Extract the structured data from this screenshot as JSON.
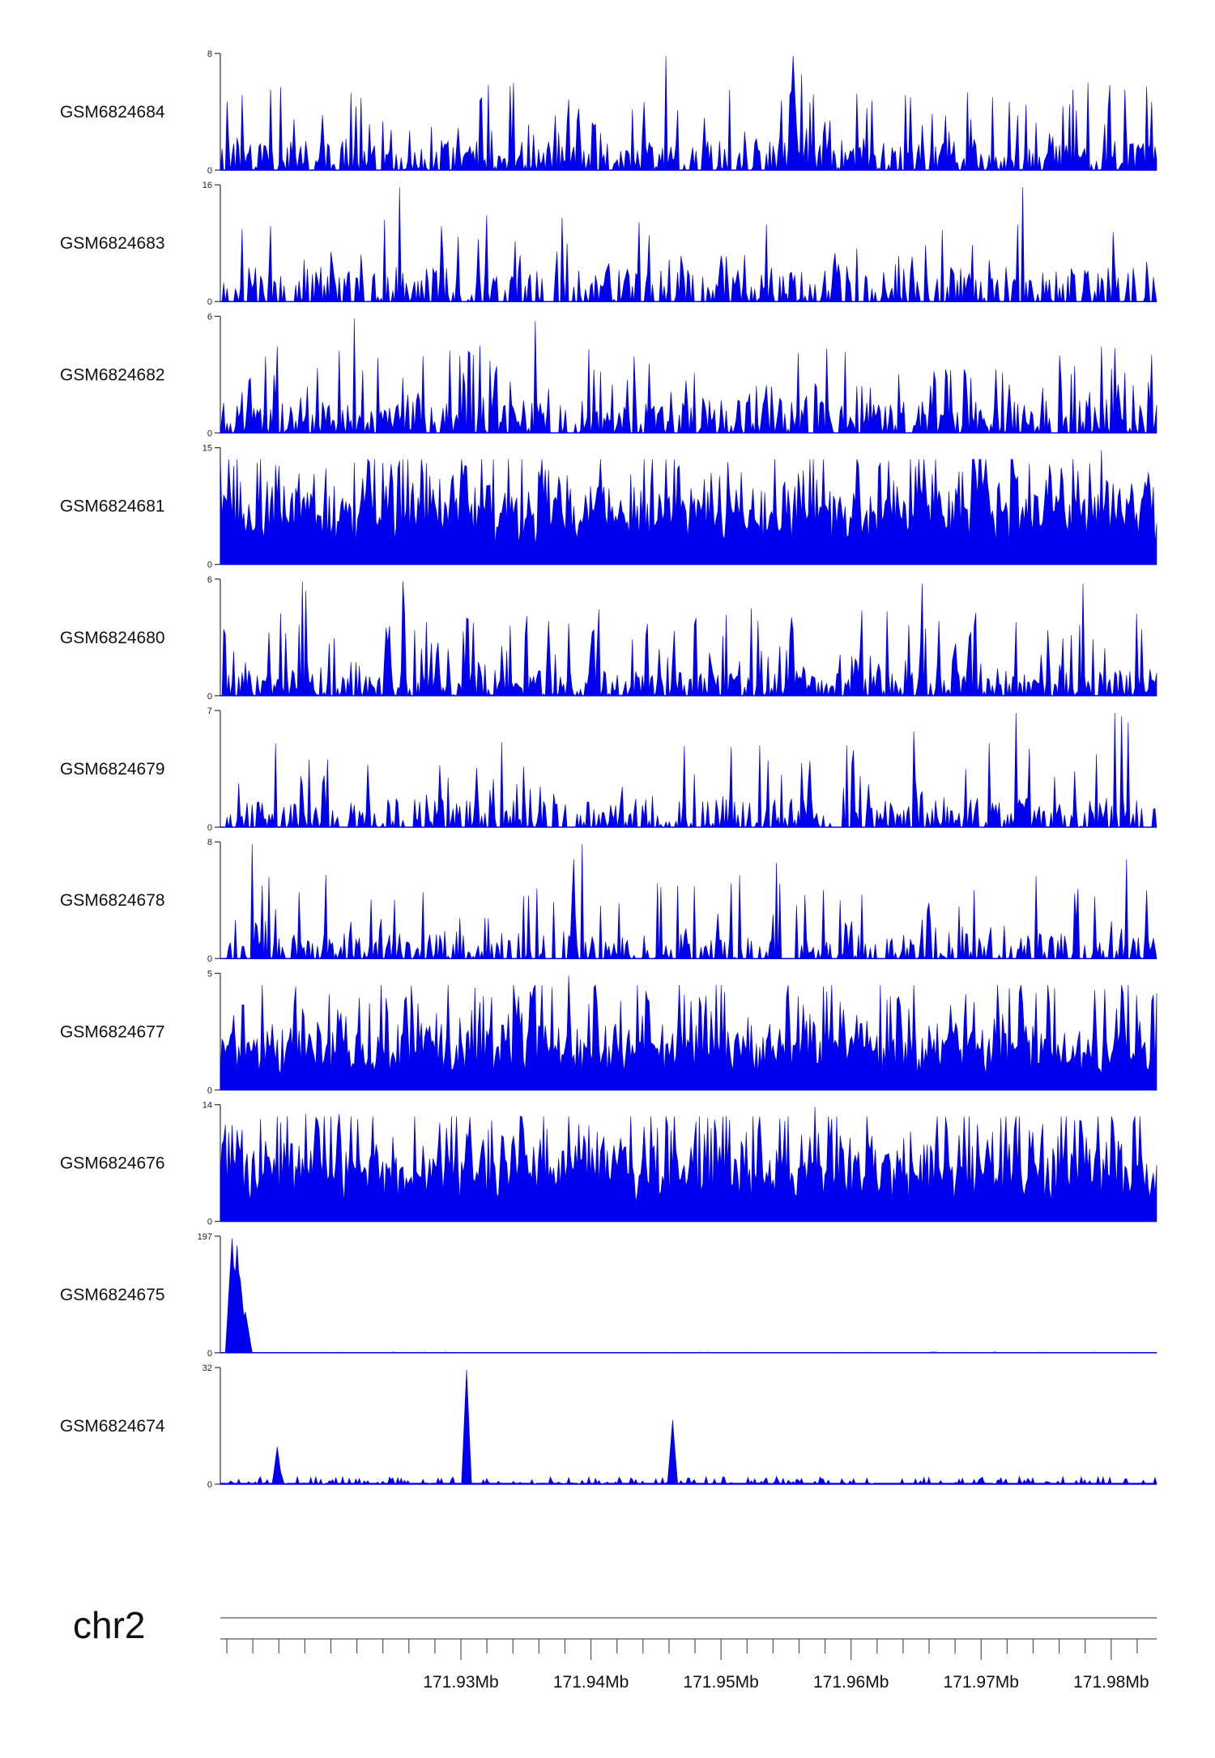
{
  "chart_data": {
    "type": "area",
    "fill_color": "#0000ee",
    "chromosome": "chr2",
    "xlim": [
      171.9115,
      171.9835
    ],
    "xunit": "Mb",
    "xticks_major": [
      171.93,
      171.94,
      171.95,
      171.96,
      171.97,
      171.98
    ],
    "xtick_labels": [
      "171.93Mb",
      "171.94Mb",
      "171.95Mb",
      "171.96Mb",
      "171.97Mb",
      "171.98Mb"
    ],
    "xticks_minor_step": 0.002,
    "grid": false,
    "tracks": [
      {
        "name": "GSM6824684",
        "ymax": 8,
        "ymax_label": "8",
        "ymin_label": "0",
        "style": "spiky",
        "seed": 11,
        "density": 0.9,
        "mean": 0.25,
        "peaks": [
          {
            "x": 171.9223,
            "h": 0.62
          },
          {
            "x": 171.9338,
            "h": 0.72
          },
          {
            "x": 171.9457,
            "h": 0.98
          },
          {
            "x": 171.9555,
            "h": 0.98
          },
          {
            "x": 171.9562,
            "h": 0.82
          }
        ]
      },
      {
        "name": "GSM6824683",
        "ymax": 16,
        "ymax_label": "16",
        "ymin_label": "0",
        "style": "sparse",
        "seed": 23,
        "density": 0.45,
        "mean": 0.3,
        "peaks": [
          {
            "x": 171.9253,
            "h": 0.98
          },
          {
            "x": 171.9732,
            "h": 0.98
          },
          {
            "x": 171.9241,
            "h": 0.7
          },
          {
            "x": 171.9378,
            "h": 0.72
          }
        ]
      },
      {
        "name": "GSM6824682",
        "ymax": 6,
        "ymax_label": "6",
        "ymin_label": "0",
        "style": "spiky",
        "seed": 37,
        "density": 0.85,
        "mean": 0.28,
        "peaks": [
          {
            "x": 171.9218,
            "h": 0.98
          },
          {
            "x": 171.9357,
            "h": 0.96
          },
          {
            "x": 171.9305,
            "h": 0.7
          }
        ]
      },
      {
        "name": "GSM6824681",
        "ymax": 15,
        "ymax_label": "15",
        "ymin_label": "0",
        "style": "dense",
        "seed": 41,
        "density": 1.0,
        "mean": 0.32,
        "peaks": [
          {
            "x": 171.9158,
            "h": 0.85
          },
          {
            "x": 171.9175,
            "h": 0.78
          },
          {
            "x": 171.9248,
            "h": 0.7
          },
          {
            "x": 171.9656,
            "h": 0.85
          },
          {
            "x": 171.9792,
            "h": 0.98
          },
          {
            "x": 171.9727,
            "h": 0.72
          }
        ]
      },
      {
        "name": "GSM6824680",
        "ymax": 6,
        "ymax_label": "6",
        "ymin_label": "0",
        "style": "spiky",
        "seed": 53,
        "density": 0.8,
        "mean": 0.22,
        "peaks": [
          {
            "x": 171.9178,
            "h": 0.98
          },
          {
            "x": 171.9181,
            "h": 0.9
          },
          {
            "x": 171.9255,
            "h": 0.98
          },
          {
            "x": 171.9778,
            "h": 0.96
          },
          {
            "x": 171.9655,
            "h": 0.96
          }
        ]
      },
      {
        "name": "GSM6824679",
        "ymax": 7,
        "ymax_label": "7",
        "ymin_label": "0",
        "style": "sparse",
        "seed": 67,
        "density": 0.6,
        "mean": 0.25,
        "peaks": [
          {
            "x": 171.9727,
            "h": 0.98
          },
          {
            "x": 171.9803,
            "h": 0.98
          },
          {
            "x": 171.9808,
            "h": 0.95
          },
          {
            "x": 171.9813,
            "h": 0.9
          },
          {
            "x": 171.9648,
            "h": 0.82
          }
        ]
      },
      {
        "name": "GSM6824678",
        "ymax": 8,
        "ymax_label": "8",
        "ymin_label": "0",
        "style": "sparse",
        "seed": 71,
        "density": 0.7,
        "mean": 0.22,
        "peaks": [
          {
            "x": 171.914,
            "h": 0.98
          },
          {
            "x": 171.9393,
            "h": 0.98
          },
          {
            "x": 171.9387,
            "h": 0.85
          },
          {
            "x": 171.9812,
            "h": 0.85
          },
          {
            "x": 171.9542,
            "h": 0.82
          }
        ]
      },
      {
        "name": "GSM6824677",
        "ymax": 5,
        "ymax_label": "5",
        "ymin_label": "0",
        "style": "dense",
        "seed": 83,
        "density": 0.95,
        "mean": 0.25,
        "peaks": [
          {
            "x": 171.9383,
            "h": 0.98
          },
          {
            "x": 171.9585,
            "h": 0.9
          },
          {
            "x": 171.9258,
            "h": 0.8
          }
        ]
      },
      {
        "name": "GSM6824676",
        "ymax": 14,
        "ymax_label": "14",
        "ymin_label": "0",
        "style": "dense",
        "seed": 97,
        "density": 1.0,
        "mean": 0.3,
        "peaks": [
          {
            "x": 171.9181,
            "h": 0.92
          },
          {
            "x": 171.9195,
            "h": 0.9
          },
          {
            "x": 171.9207,
            "h": 0.92
          },
          {
            "x": 171.9572,
            "h": 0.98
          },
          {
            "x": 171.9585,
            "h": 0.88
          }
        ]
      },
      {
        "name": "GSM6824675",
        "ymax": 197,
        "ymax_label": "197",
        "ymin_label": "0",
        "style": "single",
        "seed": 5,
        "density": 0.3,
        "mean": 0.003,
        "peaks": [
          {
            "x": 171.9124,
            "h": 0.98
          },
          {
            "x": 171.9128,
            "h": 0.92
          },
          {
            "x": 171.9131,
            "h": 0.62
          },
          {
            "x": 171.9134,
            "h": 0.35
          }
        ]
      },
      {
        "name": "GSM6824674",
        "ymax": 32,
        "ymax_label": "32",
        "ymin_label": "0",
        "style": "lowpeaks",
        "seed": 13,
        "density": 0.8,
        "mean": 0.03,
        "peaks": [
          {
            "x": 171.9304,
            "h": 0.98
          },
          {
            "x": 171.9304,
            "h": 0.95
          },
          {
            "x": 171.9463,
            "h": 0.55
          },
          {
            "x": 171.9159,
            "h": 0.32
          }
        ]
      }
    ]
  }
}
